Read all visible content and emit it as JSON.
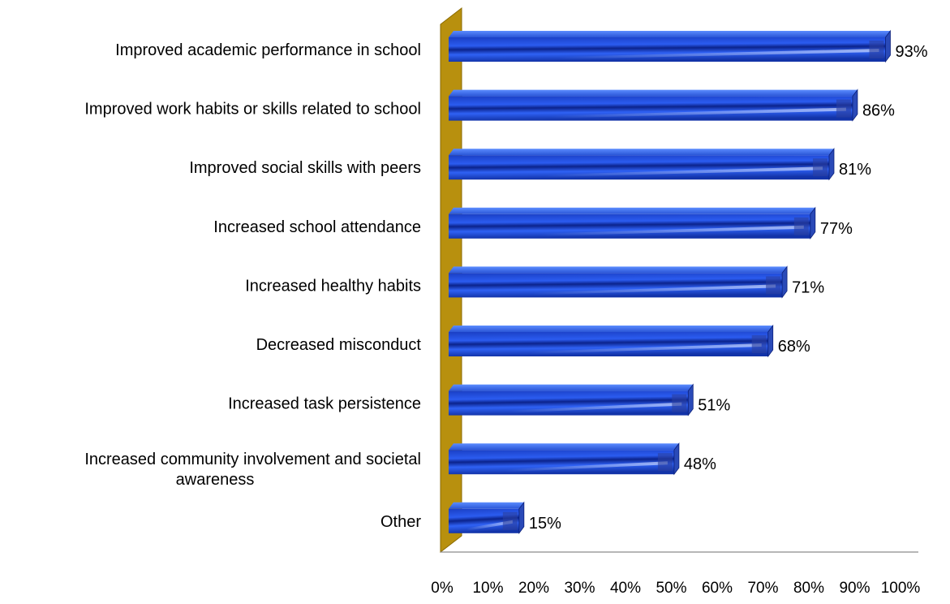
{
  "chart_data": {
    "type": "bar",
    "orientation": "horizontal",
    "three_d": true,
    "title": "",
    "xlabel": "",
    "ylabel": "",
    "categories": [
      "Improved academic performance in school",
      "Improved work habits or skills related to school",
      "Improved social skills with peers",
      "Increased school attendance",
      "Increased healthy habits",
      "Decreased misconduct",
      "Increased task persistence",
      "Increased community involvement and societal awareness",
      "Other"
    ],
    "category_label_lines": [
      [
        "Improved academic performance in school"
      ],
      [
        "Improved work habits or skills related to school"
      ],
      [
        "Improved social skills with peers"
      ],
      [
        "Increased school attendance"
      ],
      [
        "Increased healthy habits"
      ],
      [
        "Decreased misconduct"
      ],
      [
        "Increased task persistence"
      ],
      [
        "Increased community involvement and societal",
        "awareness"
      ],
      [
        "Other"
      ]
    ],
    "values": [
      93,
      86,
      81,
      77,
      71,
      68,
      51,
      48,
      15
    ],
    "data_labels": [
      "93%",
      "86%",
      "81%",
      "77%",
      "71%",
      "68%",
      "51%",
      "48%",
      "15%"
    ],
    "xlim": [
      0,
      100
    ],
    "x_ticks": [
      "0%",
      "10%",
      "20%",
      "30%",
      "40%",
      "50%",
      "60%",
      "70%",
      "80%",
      "90%",
      "100%"
    ],
    "grid": false,
    "legend": "none",
    "colors": {
      "bar_dark": "#0a2a9c",
      "bar_mid": "#1f4fd8",
      "bar_light": "#4f86ff",
      "bar_end": "#2a4ab8",
      "wall": "#b8900e",
      "wall_edge": "#8a6a00",
      "axis": "#8c8c8c",
      "text": "#000000"
    }
  }
}
